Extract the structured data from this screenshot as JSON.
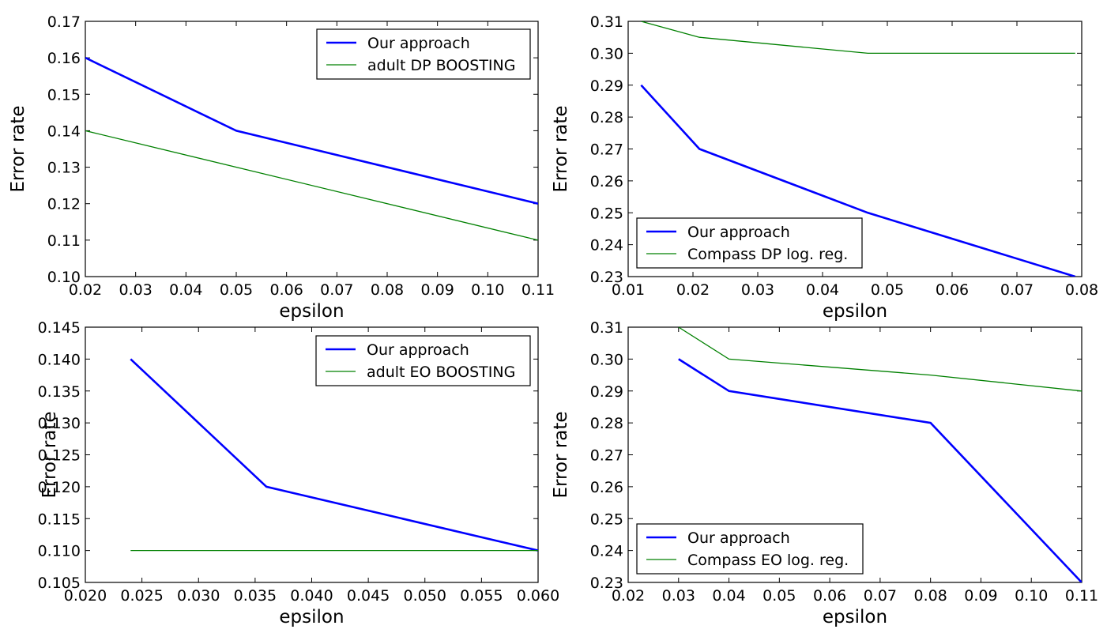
{
  "chart_data": [
    {
      "type": "line",
      "title": "",
      "xlabel": "epsilon",
      "ylabel": "Error rate",
      "xlim": [
        0.02,
        0.11
      ],
      "ylim": [
        0.1,
        0.17
      ],
      "x_ticks": [
        "0.02",
        "0.03",
        "0.04",
        "0.05",
        "0.06",
        "0.07",
        "0.08",
        "0.09",
        "0.10",
        "0.11"
      ],
      "x_tick_values": [
        0.02,
        0.03,
        0.04,
        0.05,
        0.06,
        0.07,
        0.08,
        0.09,
        0.1,
        0.11
      ],
      "y_ticks": [
        "0.10",
        "0.11",
        "0.12",
        "0.13",
        "0.14",
        "0.15",
        "0.16",
        "0.17"
      ],
      "y_tick_values": [
        0.1,
        0.11,
        0.12,
        0.13,
        0.14,
        0.15,
        0.16,
        0.17
      ],
      "legend_position": "top-right",
      "series": [
        {
          "name": "Our approach",
          "color": "#0000ff",
          "width": "thick",
          "x": [
            0.02,
            0.05,
            0.11
          ],
          "y": [
            0.16,
            0.14,
            0.12
          ]
        },
        {
          "name": "adult DP BOOSTING",
          "color": "#008000",
          "width": "thin",
          "x": [
            0.02,
            0.11
          ],
          "y": [
            0.14,
            0.11
          ]
        }
      ]
    },
    {
      "type": "line",
      "title": "",
      "xlabel": "epsilon",
      "ylabel": "Error rate",
      "xlim": [
        0.01,
        0.08
      ],
      "ylim": [
        0.23,
        0.31
      ],
      "x_ticks": [
        "0.01",
        "0.02",
        "0.03",
        "0.04",
        "0.05",
        "0.06",
        "0.07",
        "0.08"
      ],
      "x_tick_values": [
        0.01,
        0.02,
        0.03,
        0.04,
        0.05,
        0.06,
        0.07,
        0.08
      ],
      "y_ticks": [
        "0.23",
        "0.24",
        "0.25",
        "0.26",
        "0.27",
        "0.28",
        "0.29",
        "0.30",
        "0.31"
      ],
      "y_tick_values": [
        0.23,
        0.24,
        0.25,
        0.26,
        0.27,
        0.28,
        0.29,
        0.3,
        0.31
      ],
      "legend_position": "bottom-left",
      "series": [
        {
          "name": "Our approach",
          "color": "#0000ff",
          "width": "thick",
          "x": [
            0.012,
            0.021,
            0.047,
            0.079
          ],
          "y": [
            0.29,
            0.27,
            0.25,
            0.23
          ]
        },
        {
          "name": "Compass DP log. reg.",
          "color": "#008000",
          "width": "thin",
          "x": [
            0.012,
            0.021,
            0.047,
            0.079
          ],
          "y": [
            0.31,
            0.305,
            0.3,
            0.3
          ]
        }
      ]
    },
    {
      "type": "line",
      "title": "",
      "xlabel": "epsilon",
      "ylabel": "Error rate",
      "xlim": [
        0.02,
        0.06
      ],
      "ylim": [
        0.105,
        0.145
      ],
      "x_ticks": [
        "0.020",
        "0.025",
        "0.030",
        "0.035",
        "0.040",
        "0.045",
        "0.050",
        "0.055",
        "0.060"
      ],
      "x_tick_values": [
        0.02,
        0.025,
        0.03,
        0.035,
        0.04,
        0.045,
        0.05,
        0.055,
        0.06
      ],
      "y_ticks": [
        "0.105",
        "0.110",
        "0.115",
        "0.120",
        "0.125",
        "0.130",
        "0.135",
        "0.140",
        "0.145"
      ],
      "y_tick_values": [
        0.105,
        0.11,
        0.115,
        0.12,
        0.125,
        0.13,
        0.135,
        0.14,
        0.145
      ],
      "legend_position": "top-right",
      "series": [
        {
          "name": "Our approach",
          "color": "#0000ff",
          "width": "thick",
          "x": [
            0.024,
            0.036,
            0.06
          ],
          "y": [
            0.14,
            0.12,
            0.11
          ]
        },
        {
          "name": "adult EO BOOSTING",
          "color": "#008000",
          "width": "thin",
          "x": [
            0.024,
            0.036,
            0.06
          ],
          "y": [
            0.11,
            0.11,
            0.11
          ]
        }
      ]
    },
    {
      "type": "line",
      "title": "",
      "xlabel": "epsilon",
      "ylabel": "Error rate",
      "xlim": [
        0.02,
        0.11
      ],
      "ylim": [
        0.23,
        0.31
      ],
      "x_ticks": [
        "0.02",
        "0.03",
        "0.04",
        "0.05",
        "0.06",
        "0.07",
        "0.08",
        "0.09",
        "0.10",
        "0.11"
      ],
      "x_tick_values": [
        0.02,
        0.03,
        0.04,
        0.05,
        0.06,
        0.07,
        0.08,
        0.09,
        0.1,
        0.11
      ],
      "y_ticks": [
        "0.23",
        "0.24",
        "0.25",
        "0.26",
        "0.27",
        "0.28",
        "0.29",
        "0.30",
        "0.31"
      ],
      "y_tick_values": [
        0.23,
        0.24,
        0.25,
        0.26,
        0.27,
        0.28,
        0.29,
        0.3,
        0.31
      ],
      "legend_position": "bottom-left",
      "series": [
        {
          "name": "Our approach",
          "color": "#0000ff",
          "width": "thick",
          "x": [
            0.03,
            0.04,
            0.08,
            0.11
          ],
          "y": [
            0.3,
            0.29,
            0.28,
            0.23
          ]
        },
        {
          "name": "Compass EO log. reg.",
          "color": "#008000",
          "width": "thin",
          "x": [
            0.03,
            0.04,
            0.08,
            0.11
          ],
          "y": [
            0.31,
            0.3,
            0.295,
            0.29
          ]
        }
      ]
    }
  ]
}
